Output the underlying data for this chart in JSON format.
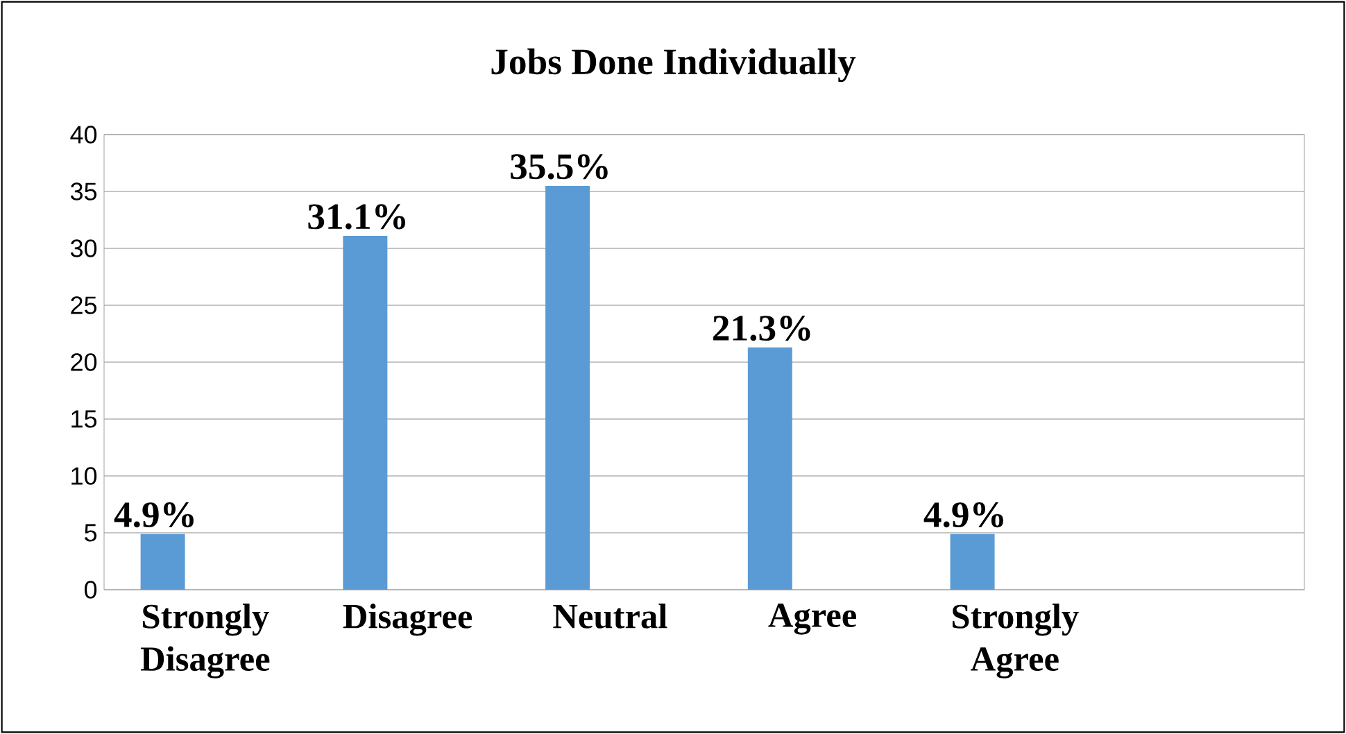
{
  "chart_data": {
    "type": "bar",
    "title": "Jobs Done Individually",
    "categories": [
      "Strongly Disagree",
      "Disagree",
      "Neutral",
      "Agree",
      "Strongly Agree"
    ],
    "values": [
      4.9,
      31.1,
      35.5,
      21.3,
      4.9
    ],
    "value_labels": [
      "4.9%",
      "31.1%",
      "35.5%",
      "21.3%",
      "4.9%"
    ],
    "color": "#5b9bd5",
    "ylim": [
      0,
      40
    ],
    "yticks": [
      0,
      5,
      10,
      15,
      20,
      25,
      30,
      35,
      40
    ],
    "grid": "y"
  }
}
